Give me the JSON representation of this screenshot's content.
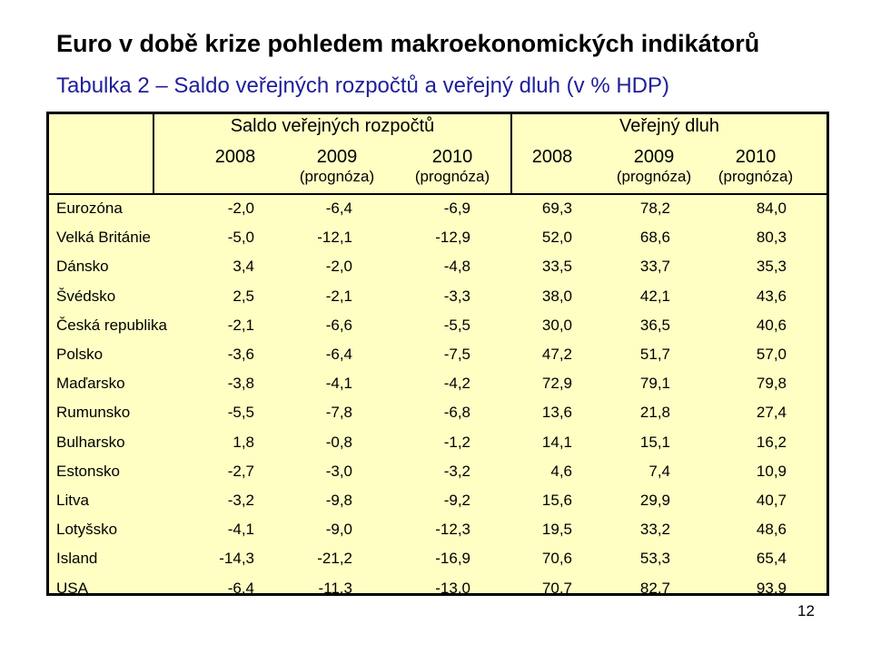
{
  "title": "Euro v době krize pohledem makroekonomických indikátorů",
  "subtitle": "Tabulka 2 – Saldo veřejných rozpočtů a veřejný dluh (v % HDP)",
  "table": {
    "groups": [
      "Saldo veřejných rozpočtů",
      "Veřejný dluh"
    ],
    "columns": [
      {
        "year": "2008",
        "note": ""
      },
      {
        "year": "2009",
        "note": "(prognóza)"
      },
      {
        "year": "2010",
        "note": "(prognóza)"
      },
      {
        "year": "2008",
        "note": ""
      },
      {
        "year": "2009",
        "note": "(prognóza)"
      },
      {
        "year": "2010",
        "note": "(prognóza)"
      }
    ],
    "rows": [
      {
        "country": "Eurozóna",
        "values": [
          "-2,0",
          "-6,4",
          "-6,9",
          "69,3",
          "78,2",
          "84,0"
        ]
      },
      {
        "country": "Velká Británie",
        "values": [
          "-5,0",
          "-12,1",
          "-12,9",
          "52,0",
          "68,6",
          "80,3"
        ]
      },
      {
        "country": "Dánsko",
        "values": [
          "3,4",
          "-2,0",
          "-4,8",
          "33,5",
          "33,7",
          "35,3"
        ]
      },
      {
        "country": "Švédsko",
        "values": [
          "2,5",
          "-2,1",
          "-3,3",
          "38,0",
          "42,1",
          "43,6"
        ]
      },
      {
        "country": "Česká republika",
        "values": [
          "-2,1",
          "-6,6",
          "-5,5",
          "30,0",
          "36,5",
          "40,6"
        ]
      },
      {
        "country": "Polsko",
        "values": [
          "-3,6",
          "-6,4",
          "-7,5",
          "47,2",
          "51,7",
          "57,0"
        ]
      },
      {
        "country": "Maďarsko",
        "values": [
          "-3,8",
          "-4,1",
          "-4,2",
          "72,9",
          "79,1",
          "79,8"
        ]
      },
      {
        "country": "Rumunsko",
        "values": [
          "-5,5",
          "-7,8",
          "-6,8",
          "13,6",
          "21,8",
          "27,4"
        ]
      },
      {
        "country": "Bulharsko",
        "values": [
          "1,8",
          "-0,8",
          "-1,2",
          "14,1",
          "15,1",
          "16,2"
        ]
      },
      {
        "country": "Estonsko",
        "values": [
          "-2,7",
          "-3,0",
          "-3,2",
          "4,6",
          "7,4",
          "10,9"
        ]
      },
      {
        "country": "Litva",
        "values": [
          "-3,2",
          "-9,8",
          "-9,2",
          "15,6",
          "29,9",
          "40,7"
        ]
      },
      {
        "country": "Lotyšsko",
        "values": [
          "-4,1",
          "-9,0",
          "-12,3",
          "19,5",
          "33,2",
          "48,6"
        ]
      },
      {
        "country": "Island",
        "values": [
          "-14,3",
          "-21,2",
          "-16,9",
          "70,6",
          "53,3",
          "65,4"
        ]
      },
      {
        "country": "USA",
        "values": [
          "-6,4",
          "-11,3",
          "-13,0",
          "70,7",
          "82,7",
          "93,9"
        ]
      }
    ]
  },
  "page_number": "12",
  "colors": {
    "table_background": "#ffffc4",
    "subtitle": "#1f1f9a"
  }
}
